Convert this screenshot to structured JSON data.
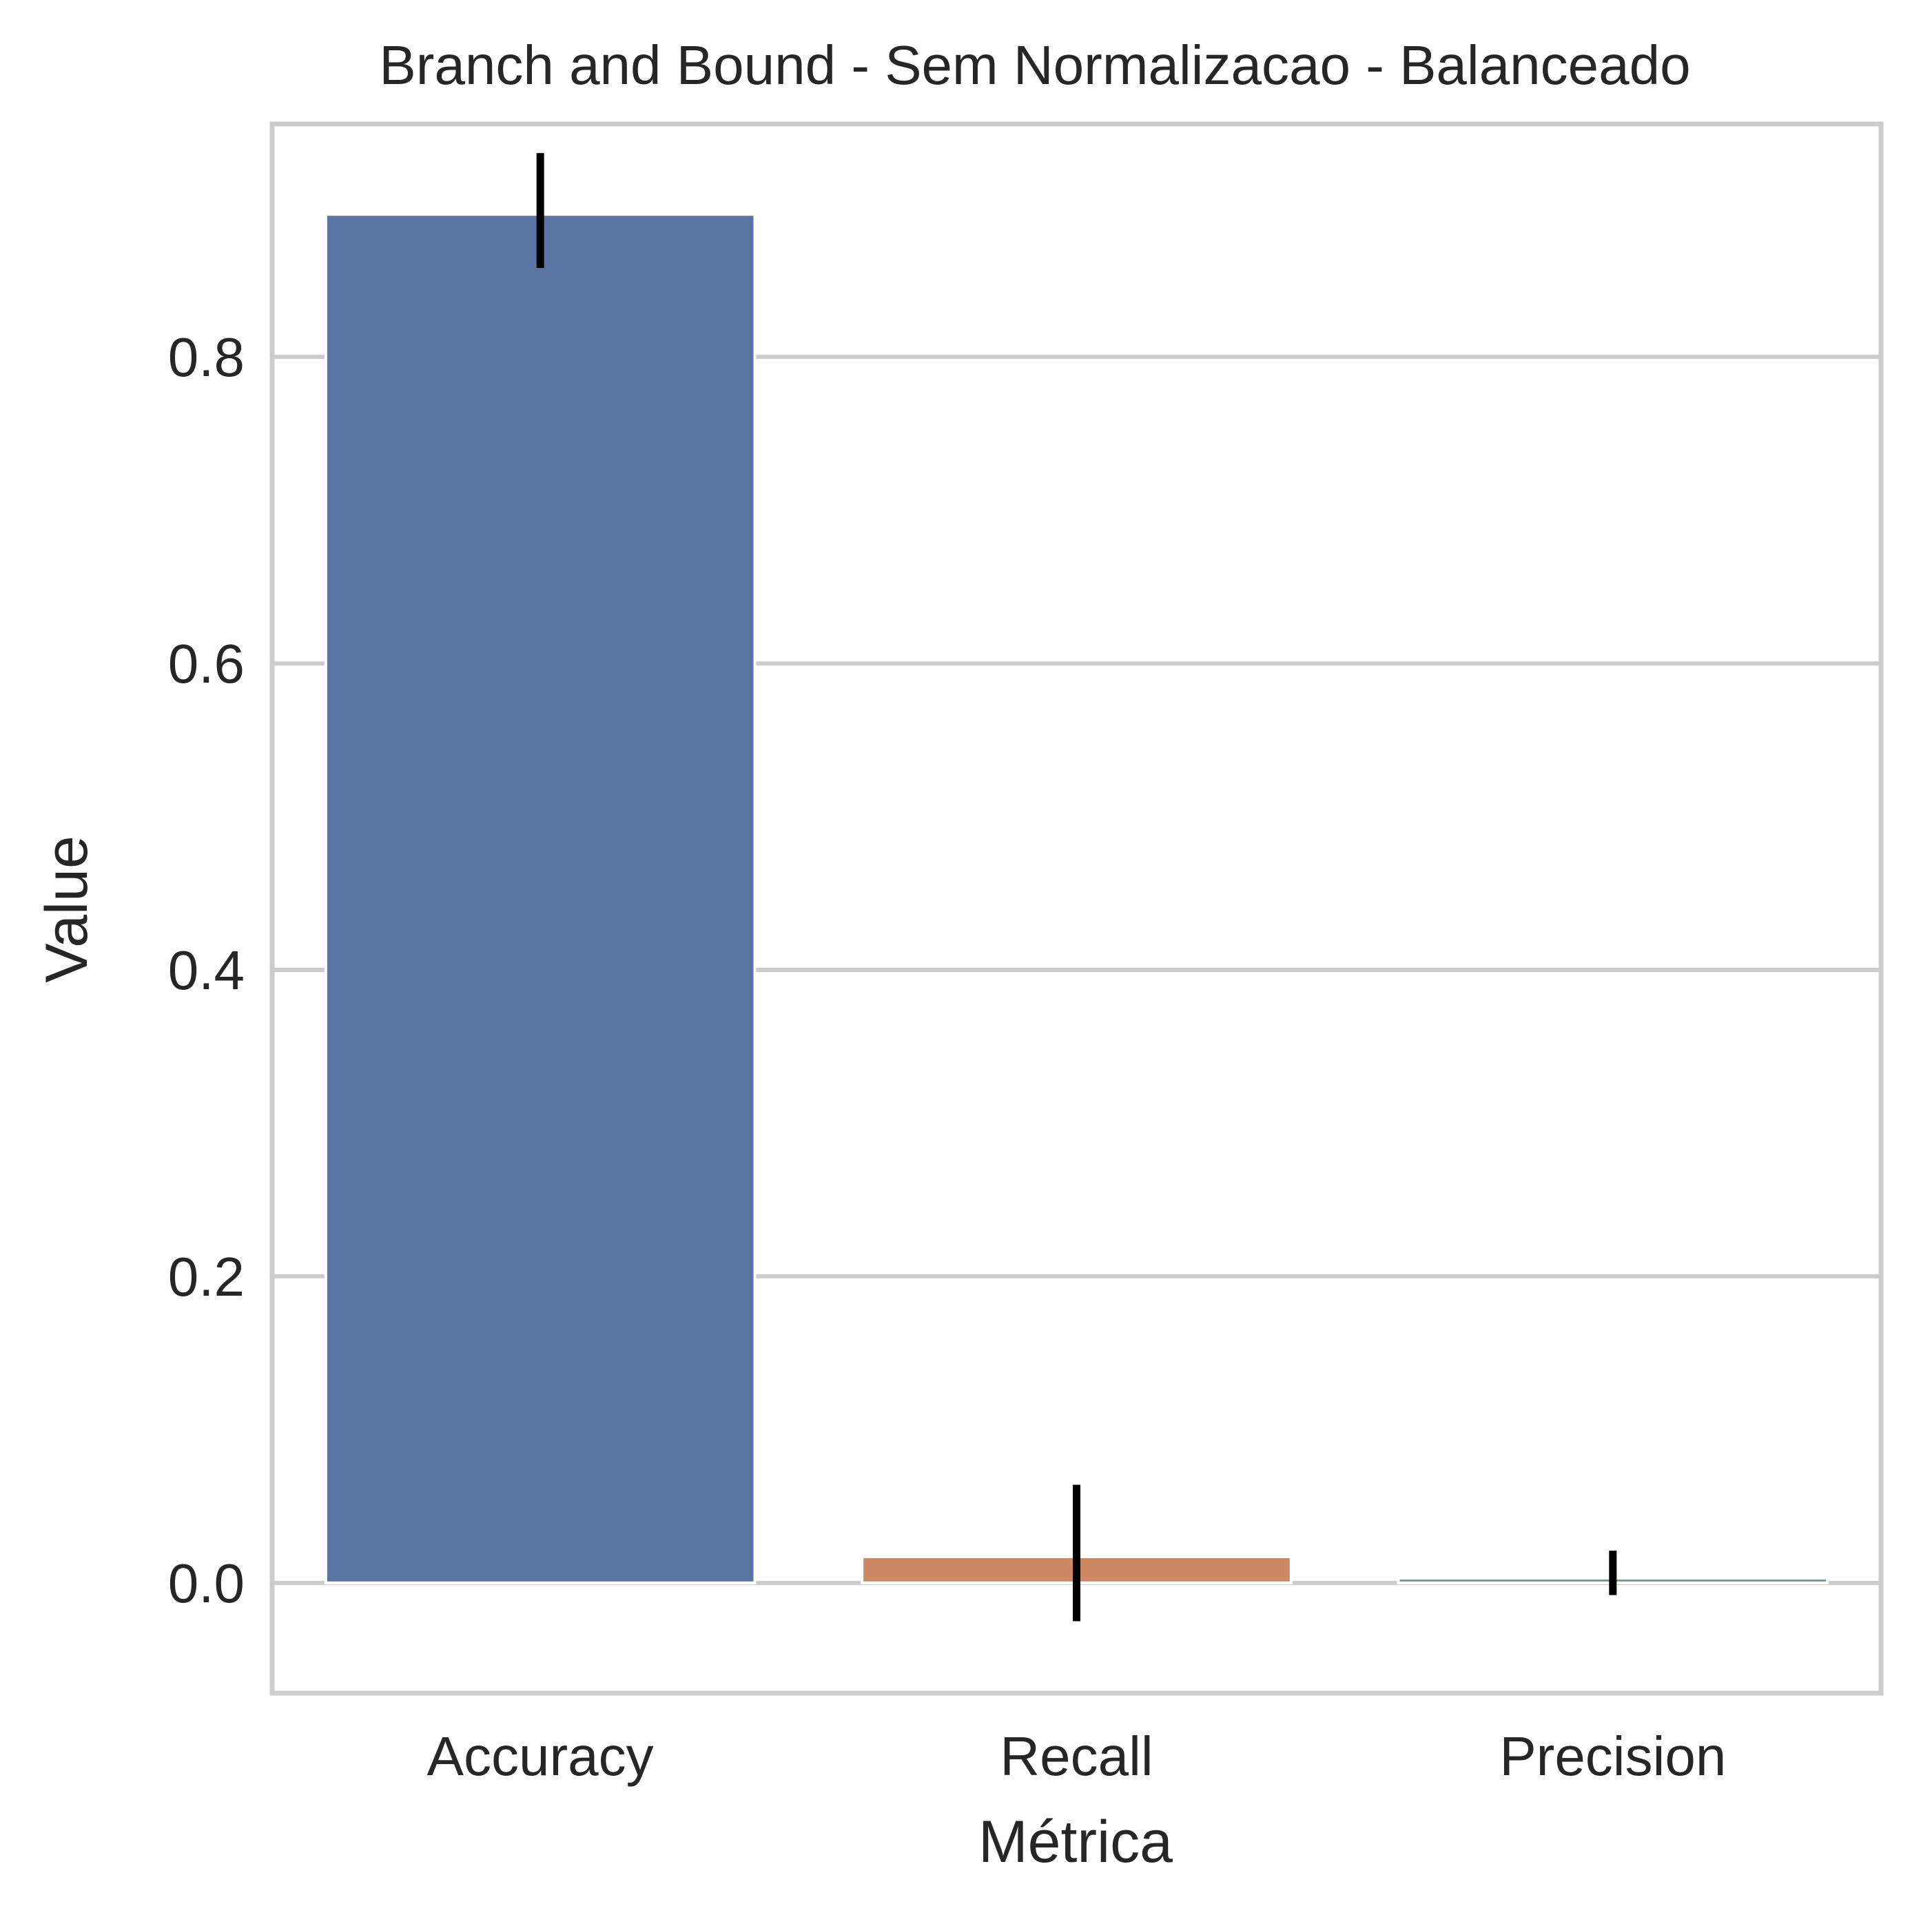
{
  "chart_data": {
    "type": "bar",
    "title": "Branch and Bound - Sem Normalizacao - Balanceado",
    "xlabel": "Métrica",
    "ylabel": "Value",
    "categories": [
      "Accuracy",
      "Recall",
      "Precision"
    ],
    "values": [
      0.893,
      0.017,
      0.003
    ],
    "error_low": [
      0.858,
      -0.025,
      -0.008
    ],
    "error_high": [
      0.933,
      0.064,
      0.021
    ],
    "ylim": [
      -0.072,
      0.952
    ],
    "yticks": [
      0.0,
      0.2,
      0.4,
      0.6,
      0.8
    ],
    "ytick_labels": [
      "0.0",
      "0.2",
      "0.4",
      "0.6",
      "0.8"
    ],
    "colors": [
      "#5975a4",
      "#cc8963",
      "#5f9e6e"
    ],
    "error_color": "#000000",
    "grid": "horizontal",
    "style_colors": {
      "grid": "#cccccc",
      "frame": "#cccccc",
      "text": "#262626"
    }
  }
}
